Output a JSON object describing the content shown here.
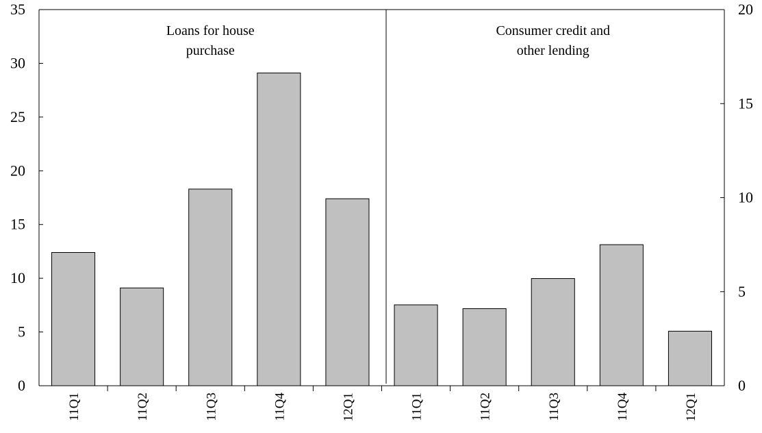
{
  "chart_data": {
    "type": "bar",
    "grid": false,
    "colors": {
      "bar_fill": "#c0c0c0",
      "bar_stroke": "#000000"
    },
    "panels": [
      {
        "label_lines": [
          "Loans for house",
          "purchase"
        ],
        "axis": "left",
        "categories": [
          "11Q1",
          "11Q2",
          "11Q3",
          "11Q4",
          "12Q1"
        ],
        "values": [
          12.4,
          9.1,
          18.3,
          29.1,
          17.4
        ]
      },
      {
        "label_lines": [
          "Consumer credit and",
          "other lending"
        ],
        "axis": "right",
        "categories": [
          "11Q1",
          "11Q2",
          "11Q3",
          "11Q4",
          "12Q1"
        ],
        "values": [
          4.3,
          4.1,
          5.7,
          7.5,
          2.9
        ]
      }
    ],
    "y_left": {
      "ylim": [
        0,
        35
      ],
      "ticks": [
        "0",
        "5",
        "10",
        "15",
        "20",
        "25",
        "30",
        "35"
      ]
    },
    "y_right": {
      "ylim": [
        0,
        20
      ],
      "ticks": [
        "0",
        "5",
        "10",
        "15",
        "20"
      ]
    }
  }
}
